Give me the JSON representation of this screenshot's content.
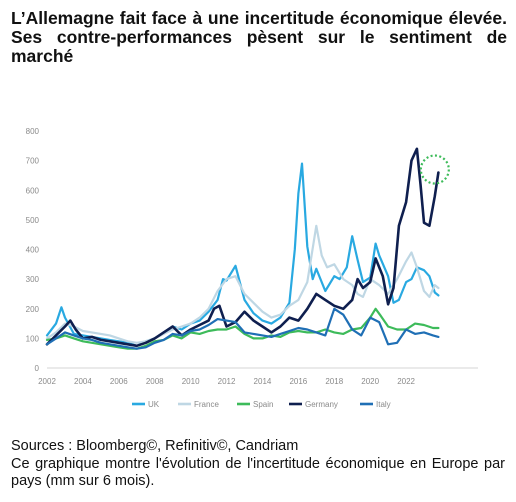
{
  "title": "L’Allemagne fait face à une incertitude économique élevée. Ses contre-performances pèsent sur le sentiment de marché",
  "sources": "Sources : Bloomberg©, Refinitiv©, Candriam",
  "description": "Ce graphique montre l'évolution de l'incertitude économique en Europe par pays (mm sur 6 mois).",
  "chart_data": {
    "type": "line",
    "title": "",
    "xlabel": "",
    "ylabel": "",
    "xlim": [
      2002,
      2024
    ],
    "ylim": [
      0,
      800
    ],
    "xticks": [
      "2002",
      "2004",
      "2006",
      "2008",
      "2010",
      "2012",
      "2014",
      "2016",
      "2018",
      "2020",
      "2022"
    ],
    "yticks": [
      "0",
      "100",
      "200",
      "300",
      "400",
      "500",
      "600",
      "700",
      "800"
    ],
    "grid": false,
    "legend_position": "bottom",
    "highlight": {
      "x": 2023.6,
      "y": 670,
      "color": "#3dbb5a",
      "shape": "dotted-circle"
    },
    "series": [
      {
        "name": "UK",
        "color": "#29a9e1",
        "x": [
          2002,
          2002.5,
          2002.8,
          2003,
          2003.5,
          2004,
          2004.5,
          2005,
          2005.5,
          2006,
          2006.5,
          2007,
          2007.5,
          2008,
          2008.5,
          2009,
          2009.5,
          2010,
          2010.5,
          2011,
          2011.5,
          2011.8,
          2012,
          2012.5,
          2013,
          2013.5,
          2014,
          2014.5,
          2015,
          2015.5,
          2015.8,
          2016,
          2016.2,
          2016.5,
          2016.8,
          2017,
          2017.5,
          2018,
          2018.3,
          2018.7,
          2019,
          2019.3,
          2019.6,
          2020,
          2020.3,
          2020.5,
          2021,
          2021.3,
          2021.6,
          2022,
          2022.3,
          2022.6,
          2023,
          2023.3,
          2023.6,
          2023.8
        ],
        "y": [
          110,
          150,
          205,
          170,
          115,
          110,
          105,
          100,
          95,
          90,
          85,
          75,
          90,
          100,
          120,
          140,
          130,
          150,
          160,
          190,
          230,
          300,
          295,
          345,
          230,
          185,
          160,
          150,
          170,
          220,
          400,
          590,
          690,
          410,
          300,
          335,
          260,
          310,
          300,
          340,
          445,
          365,
          290,
          305,
          420,
          380,
          310,
          220,
          230,
          290,
          300,
          340,
          330,
          310,
          255,
          245
        ]
      },
      {
        "name": "France",
        "color": "#bfd7e4",
        "x": [
          2002,
          2002.5,
          2003,
          2003.5,
          2004,
          2004.5,
          2005,
          2005.5,
          2006,
          2006.5,
          2007,
          2007.5,
          2008,
          2008.5,
          2009,
          2009.5,
          2010,
          2010.5,
          2011,
          2011.5,
          2012,
          2012.5,
          2013,
          2013.5,
          2014,
          2014.5,
          2015,
          2015.5,
          2016,
          2016.5,
          2017,
          2017.3,
          2017.6,
          2018,
          2018.5,
          2019,
          2019.3,
          2019.6,
          2020,
          2020.5,
          2021,
          2021.5,
          2022,
          2022.3,
          2022.6,
          2023,
          2023.3,
          2023.6,
          2023.8
        ],
        "y": [
          100,
          120,
          150,
          140,
          125,
          120,
          115,
          110,
          100,
          90,
          85,
          90,
          100,
          115,
          130,
          140,
          150,
          170,
          200,
          260,
          300,
          310,
          250,
          220,
          190,
          170,
          180,
          210,
          230,
          290,
          480,
          380,
          340,
          350,
          300,
          280,
          250,
          240,
          300,
          280,
          250,
          300,
          360,
          390,
          340,
          260,
          240,
          280,
          270
        ]
      },
      {
        "name": "Spain",
        "color": "#3dbb5a",
        "x": [
          2002,
          2002.5,
          2003,
          2003.5,
          2004,
          2004.5,
          2005,
          2005.5,
          2006,
          2006.5,
          2007,
          2007.5,
          2008,
          2008.5,
          2009,
          2009.5,
          2010,
          2010.5,
          2011,
          2011.5,
          2012,
          2012.5,
          2013,
          2013.5,
          2014,
          2014.5,
          2015,
          2015.5,
          2016,
          2016.5,
          2017,
          2017.5,
          2018,
          2018.5,
          2019,
          2019.5,
          2020,
          2020.3,
          2020.6,
          2021,
          2021.5,
          2022,
          2022.5,
          2023,
          2023.5,
          2023.8
        ],
        "y": [
          95,
          100,
          110,
          100,
          90,
          85,
          80,
          75,
          70,
          65,
          65,
          75,
          90,
          95,
          110,
          100,
          120,
          115,
          125,
          130,
          130,
          140,
          115,
          100,
          100,
          110,
          105,
          120,
          125,
          120,
          120,
          130,
          120,
          115,
          130,
          135,
          170,
          200,
          175,
          140,
          130,
          130,
          150,
          145,
          135,
          135
        ]
      },
      {
        "name": "Germany",
        "color": "#0f1f4f",
        "x": [
          2002,
          2002.5,
          2003,
          2003.3,
          2003.6,
          2004,
          2004.5,
          2005,
          2005.5,
          2006,
          2006.5,
          2007,
          2007.5,
          2008,
          2008.5,
          2009,
          2009.5,
          2010,
          2010.5,
          2011,
          2011.3,
          2011.6,
          2012,
          2012.5,
          2013,
          2013.5,
          2014,
          2014.5,
          2015,
          2015.5,
          2016,
          2016.5,
          2017,
          2017.5,
          2018,
          2018.5,
          2019,
          2019.3,
          2019.6,
          2020,
          2020.3,
          2020.7,
          2021,
          2021.3,
          2021.6,
          2022,
          2022.3,
          2022.6,
          2022.8,
          2023,
          2023.3,
          2023.6,
          2023.8
        ],
        "y": [
          80,
          110,
          140,
          160,
          130,
          100,
          105,
          95,
          90,
          85,
          80,
          75,
          85,
          100,
          120,
          140,
          110,
          130,
          145,
          160,
          200,
          210,
          140,
          155,
          190,
          160,
          140,
          120,
          140,
          170,
          160,
          200,
          250,
          230,
          210,
          200,
          230,
          300,
          270,
          290,
          370,
          310,
          215,
          270,
          480,
          560,
          700,
          740,
          620,
          490,
          480,
          580,
          660
        ]
      },
      {
        "name": "Italy",
        "color": "#1f6fb5",
        "x": [
          2002,
          2002.5,
          2003,
          2003.5,
          2004,
          2004.5,
          2005,
          2005.5,
          2006,
          2006.5,
          2007,
          2007.5,
          2008,
          2008.5,
          2009,
          2009.5,
          2010,
          2010.5,
          2011,
          2011.5,
          2012,
          2012.5,
          2013,
          2013.5,
          2014,
          2014.5,
          2015,
          2015.5,
          2016,
          2016.5,
          2017,
          2017.5,
          2018,
          2018.5,
          2019,
          2019.5,
          2020,
          2020.5,
          2021,
          2021.5,
          2022,
          2022.5,
          2023,
          2023.5,
          2023.8
        ],
        "y": [
          80,
          100,
          120,
          110,
          100,
          95,
          85,
          80,
          75,
          70,
          65,
          70,
          85,
          95,
          115,
          110,
          125,
          130,
          145,
          165,
          160,
          155,
          120,
          115,
          110,
          105,
          115,
          125,
          135,
          130,
          120,
          110,
          200,
          180,
          130,
          110,
          170,
          155,
          80,
          85,
          130,
          115,
          120,
          110,
          105
        ]
      }
    ]
  }
}
